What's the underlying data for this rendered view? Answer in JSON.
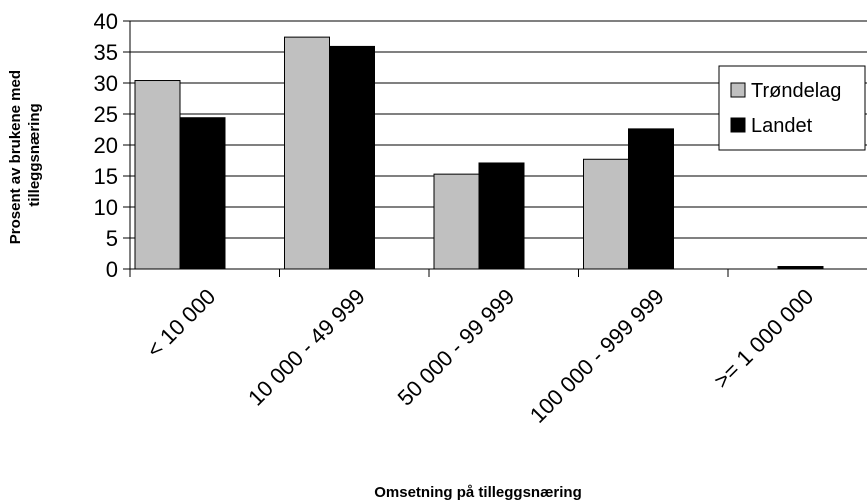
{
  "chart_data": {
    "type": "bar",
    "categories": [
      "< 10 000",
      "10 000 - 49 999",
      "50 000 - 99 999",
      "100 000 - 999 999",
      ">= 1 000 000"
    ],
    "series": [
      {
        "name": "Trøndelag",
        "values": [
          30.4,
          37.4,
          15.3,
          17.7,
          0
        ],
        "color": "#c0c0c0"
      },
      {
        "name": "Landet",
        "values": [
          24.4,
          35.9,
          17.1,
          22.6,
          0.4
        ],
        "color": "#000000"
      }
    ],
    "yticks": [
      "0",
      "5",
      "10",
      "15",
      "20",
      "25",
      "30",
      "35",
      "40"
    ],
    "ylim": [
      0,
      40
    ],
    "xlabel": "Omsetning på tilleggsnæring",
    "ylabel_lines": [
      "Prosent av brukene med",
      "tilleggsnæring"
    ],
    "legend_position": "right",
    "grid": true
  }
}
